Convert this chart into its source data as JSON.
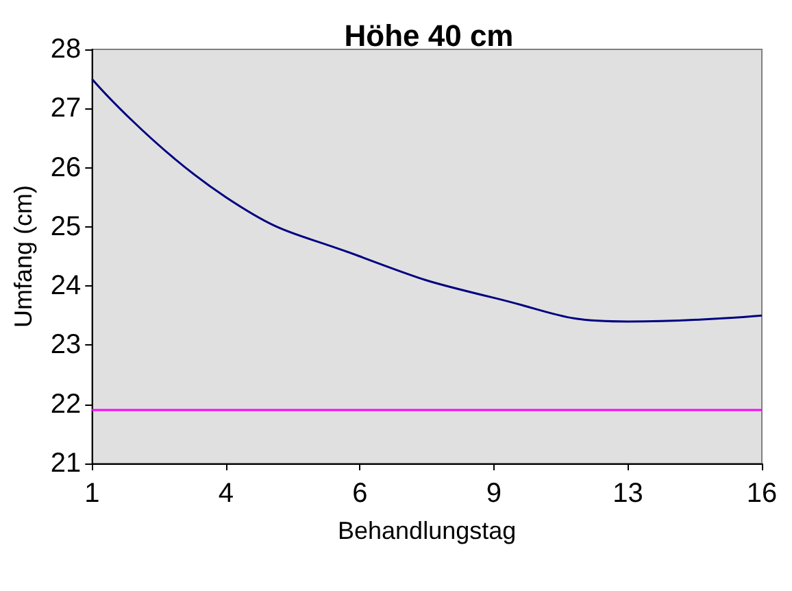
{
  "chart_data": {
    "type": "line",
    "title": "Höhe 40 cm",
    "xlabel": "Behandlungstag",
    "ylabel": "Umfang (cm)",
    "categories": [
      "1",
      "4",
      "6",
      "9",
      "13",
      "16"
    ],
    "series": [
      {
        "color": "#000080",
        "values": [
          27.5,
          25.5,
          24.5,
          23.8,
          23.4,
          23.5
        ]
      }
    ],
    "ref_lines": [
      {
        "axis": "y",
        "value": 21.9,
        "color": "#ff00ff",
        "line_style": "solid"
      }
    ],
    "ylim": [
      21,
      28
    ],
    "yticks": [
      21,
      22,
      23,
      24,
      25,
      26,
      27,
      28
    ],
    "grid": false,
    "marker": "none"
  }
}
